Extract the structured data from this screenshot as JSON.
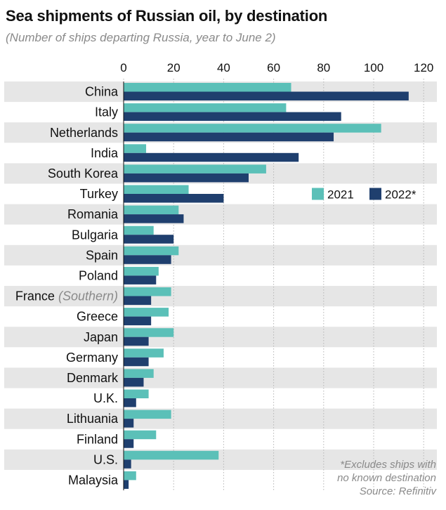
{
  "title": "Sea shipments of Russian oil, by destination",
  "subtitle": "(Number of ships departing Russia, year to June 2)",
  "footnote": {
    "line1": "*Excludes ships with",
    "line2": "no known destination",
    "source": "Source: Refinitiv"
  },
  "colors": {
    "series_2021": "#5bc0b8",
    "series_2022": "#1f3f6e",
    "band": "#e6e6e6"
  },
  "chart_data": {
    "type": "bar",
    "orientation": "horizontal",
    "categories": [
      {
        "name": "China",
        "note": ""
      },
      {
        "name": "Italy",
        "note": ""
      },
      {
        "name": "Netherlands",
        "note": ""
      },
      {
        "name": "India",
        "note": ""
      },
      {
        "name": "South Korea",
        "note": ""
      },
      {
        "name": "Turkey",
        "note": ""
      },
      {
        "name": "Romania",
        "note": ""
      },
      {
        "name": "Bulgaria",
        "note": ""
      },
      {
        "name": "Spain",
        "note": ""
      },
      {
        "name": "Poland",
        "note": ""
      },
      {
        "name": "France",
        "note": "(Southern)"
      },
      {
        "name": "Greece",
        "note": ""
      },
      {
        "name": "Japan",
        "note": ""
      },
      {
        "name": "Germany",
        "note": ""
      },
      {
        "name": "Denmark",
        "note": ""
      },
      {
        "name": "U.K.",
        "note": ""
      },
      {
        "name": "Lithuania",
        "note": ""
      },
      {
        "name": "Finland",
        "note": ""
      },
      {
        "name": "U.S.",
        "note": ""
      },
      {
        "name": "Malaysia",
        "note": ""
      }
    ],
    "series": [
      {
        "name": "2021",
        "values": [
          67,
          65,
          103,
          9,
          57,
          26,
          22,
          12,
          22,
          14,
          19,
          18,
          20,
          16,
          12,
          10,
          19,
          13,
          38,
          5
        ]
      },
      {
        "name": "2022*",
        "values": [
          114,
          87,
          84,
          70,
          50,
          40,
          24,
          20,
          19,
          13,
          11,
          11,
          10,
          10,
          8,
          5,
          4,
          4,
          3,
          2
        ]
      }
    ],
    "xlim": [
      0,
      120
    ],
    "xticks": [
      0,
      20,
      40,
      60,
      80,
      100,
      120
    ],
    "grid": "vertical dotted",
    "legend_position": "right, beside Turkey row",
    "bands": "alternating gray rows"
  }
}
